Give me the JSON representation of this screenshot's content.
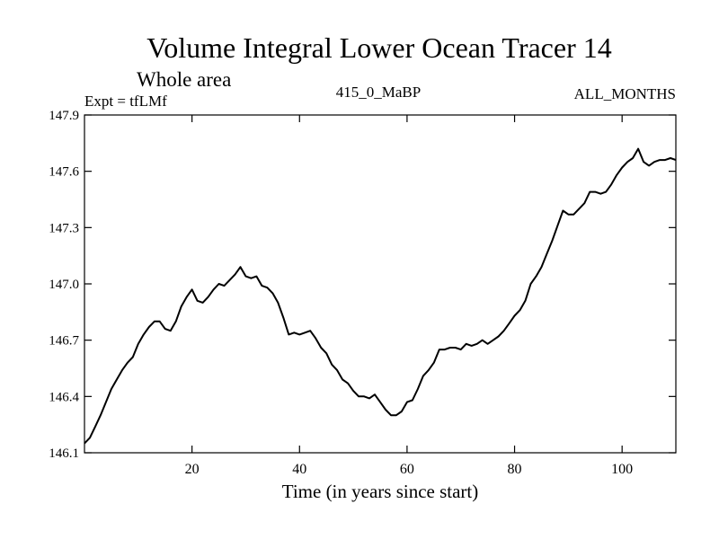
{
  "chart_data": {
    "type": "line",
    "title": "Volume Integral Lower Ocean Tracer 14",
    "subtitle": "Whole area",
    "left_label": "Expt = tfLMf",
    "center_label": "415_0_MaBP",
    "right_label": "ALL_MONTHS",
    "xlabel": "Time (in years since start)",
    "ylabel": "",
    "xlim": [
      0,
      110
    ],
    "ylim": [
      146.1,
      147.9
    ],
    "x_ticks": [
      20,
      40,
      60,
      80,
      100
    ],
    "y_ticks": [
      "146.1",
      "146.4",
      "146.7",
      "147.0",
      "147.3",
      "147.6",
      "147.9"
    ],
    "series": [
      {
        "name": "Whole area",
        "x": [
          0,
          1,
          2,
          3,
          4,
          5,
          6,
          7,
          8,
          9,
          10,
          11,
          12,
          13,
          14,
          15,
          16,
          17,
          18,
          19,
          20,
          21,
          22,
          23,
          24,
          25,
          26,
          27,
          28,
          29,
          30,
          31,
          32,
          33,
          34,
          35,
          36,
          37,
          38,
          39,
          40,
          41,
          42,
          43,
          44,
          45,
          46,
          47,
          48,
          49,
          50,
          51,
          52,
          53,
          54,
          55,
          56,
          57,
          58,
          59,
          60,
          61,
          62,
          63,
          64,
          65,
          66,
          67,
          68,
          69,
          70,
          71,
          72,
          73,
          74,
          75,
          76,
          77,
          78,
          79,
          80,
          81,
          82,
          83,
          84,
          85,
          86,
          87,
          88,
          89,
          90,
          91,
          92,
          93,
          94,
          95,
          96,
          97,
          98,
          99,
          100,
          101,
          102,
          103,
          104,
          105,
          106,
          107,
          108,
          109,
          110
        ],
        "values": [
          146.15,
          146.18,
          146.24,
          146.3,
          146.37,
          146.44,
          146.49,
          146.54,
          146.58,
          146.61,
          146.68,
          146.73,
          146.77,
          146.8,
          146.8,
          146.76,
          146.75,
          146.8,
          146.88,
          146.93,
          146.97,
          146.91,
          146.9,
          146.93,
          146.97,
          147.0,
          146.99,
          147.02,
          147.05,
          147.09,
          147.04,
          147.03,
          147.04,
          146.99,
          146.98,
          146.95,
          146.9,
          146.82,
          146.73,
          146.74,
          146.73,
          146.74,
          146.75,
          146.71,
          146.66,
          146.63,
          146.57,
          146.54,
          146.49,
          146.47,
          146.43,
          146.4,
          146.4,
          146.39,
          146.41,
          146.37,
          146.33,
          146.3,
          146.3,
          146.32,
          146.37,
          146.38,
          146.44,
          146.51,
          146.54,
          146.58,
          146.65,
          146.65,
          146.66,
          146.66,
          146.65,
          146.68,
          146.67,
          146.68,
          146.7,
          146.68,
          146.7,
          146.72,
          146.75,
          146.79,
          146.83,
          146.86,
          146.91,
          147.0,
          147.04,
          147.09,
          147.16,
          147.23,
          147.31,
          147.39,
          147.37,
          147.37,
          147.4,
          147.43,
          147.49,
          147.49,
          147.48,
          147.49,
          147.53,
          147.58,
          147.62,
          147.65,
          147.67,
          147.72,
          147.65,
          147.63,
          147.65,
          147.66,
          147.66,
          147.67,
          147.66
        ]
      }
    ]
  }
}
